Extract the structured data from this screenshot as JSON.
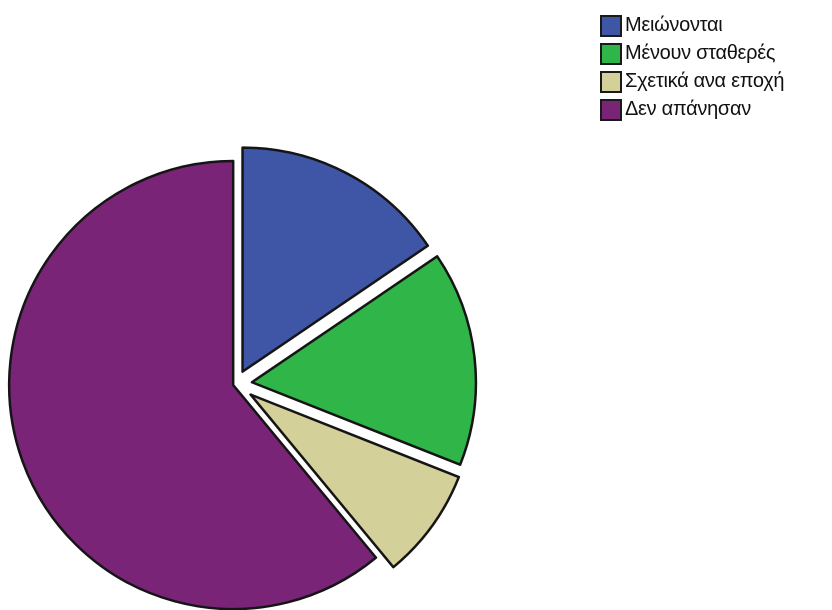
{
  "chart_data": {
    "type": "pie",
    "exploded": true,
    "legend_position": "top-right",
    "series": [
      {
        "name": "Μειώνονται",
        "value": 15.5,
        "color": "#3f55a6"
      },
      {
        "name": "Μένουν σταθερές",
        "value": 15.5,
        "color": "#2fb548"
      },
      {
        "name": "Σχετικά ανα εποχή",
        "value": 8.0,
        "color": "#d4d09a"
      },
      {
        "name": "Δεν απάνησαν",
        "value": 61.0,
        "color": "#7a2478"
      }
    ]
  }
}
